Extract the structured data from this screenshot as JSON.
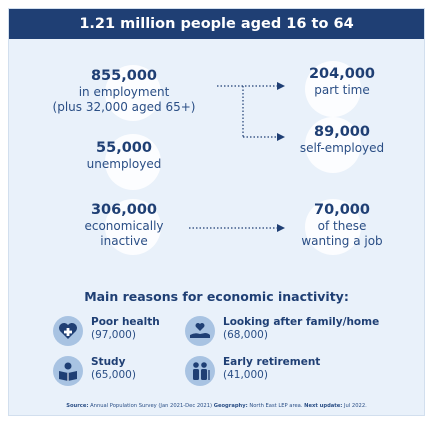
{
  "header": {
    "title": "1.21 million people aged 16 to 64"
  },
  "employment": {
    "value": "855,000",
    "label": "in employment",
    "note": "(plus 32,000 aged 65+)"
  },
  "part_time": {
    "value": "204,000",
    "label": "part time"
  },
  "self_employed": {
    "value": "89,000",
    "label": "self-employed"
  },
  "unemployed": {
    "value": "55,000",
    "label": "unemployed"
  },
  "inactive": {
    "value": "306,000",
    "label_1": "economically",
    "label_2": "inactive"
  },
  "wanting_job": {
    "value": "70,000",
    "label_1": "of these",
    "label_2": "wanting a job"
  },
  "reasons": {
    "title": "Main reasons for economic inactivity:",
    "items": [
      {
        "name": "Poor health",
        "value": "(97,000)",
        "icon": "heart-plus-icon"
      },
      {
        "name": "Looking after family/home",
        "value": "(68,000)",
        "icon": "caring-hand-icon"
      },
      {
        "name": "Study",
        "value": "(65,000)",
        "icon": "reading-book-icon"
      },
      {
        "name": "Early retirement",
        "value": "(41,000)",
        "icon": "elderly-people-icon"
      }
    ]
  },
  "source": {
    "source_label": "Source:",
    "source_text": "Annual Population Survey (Jan 2021-Dec 2021)",
    "geography_label": "Geography:",
    "geography_text": "North East LEP area.",
    "update_label": "Next update:",
    "update_text": "Jul 2022."
  },
  "colors": {
    "navy": "#1f3f74",
    "background": "#e9f1fa",
    "icon_circle": "#a8c3e2"
  }
}
